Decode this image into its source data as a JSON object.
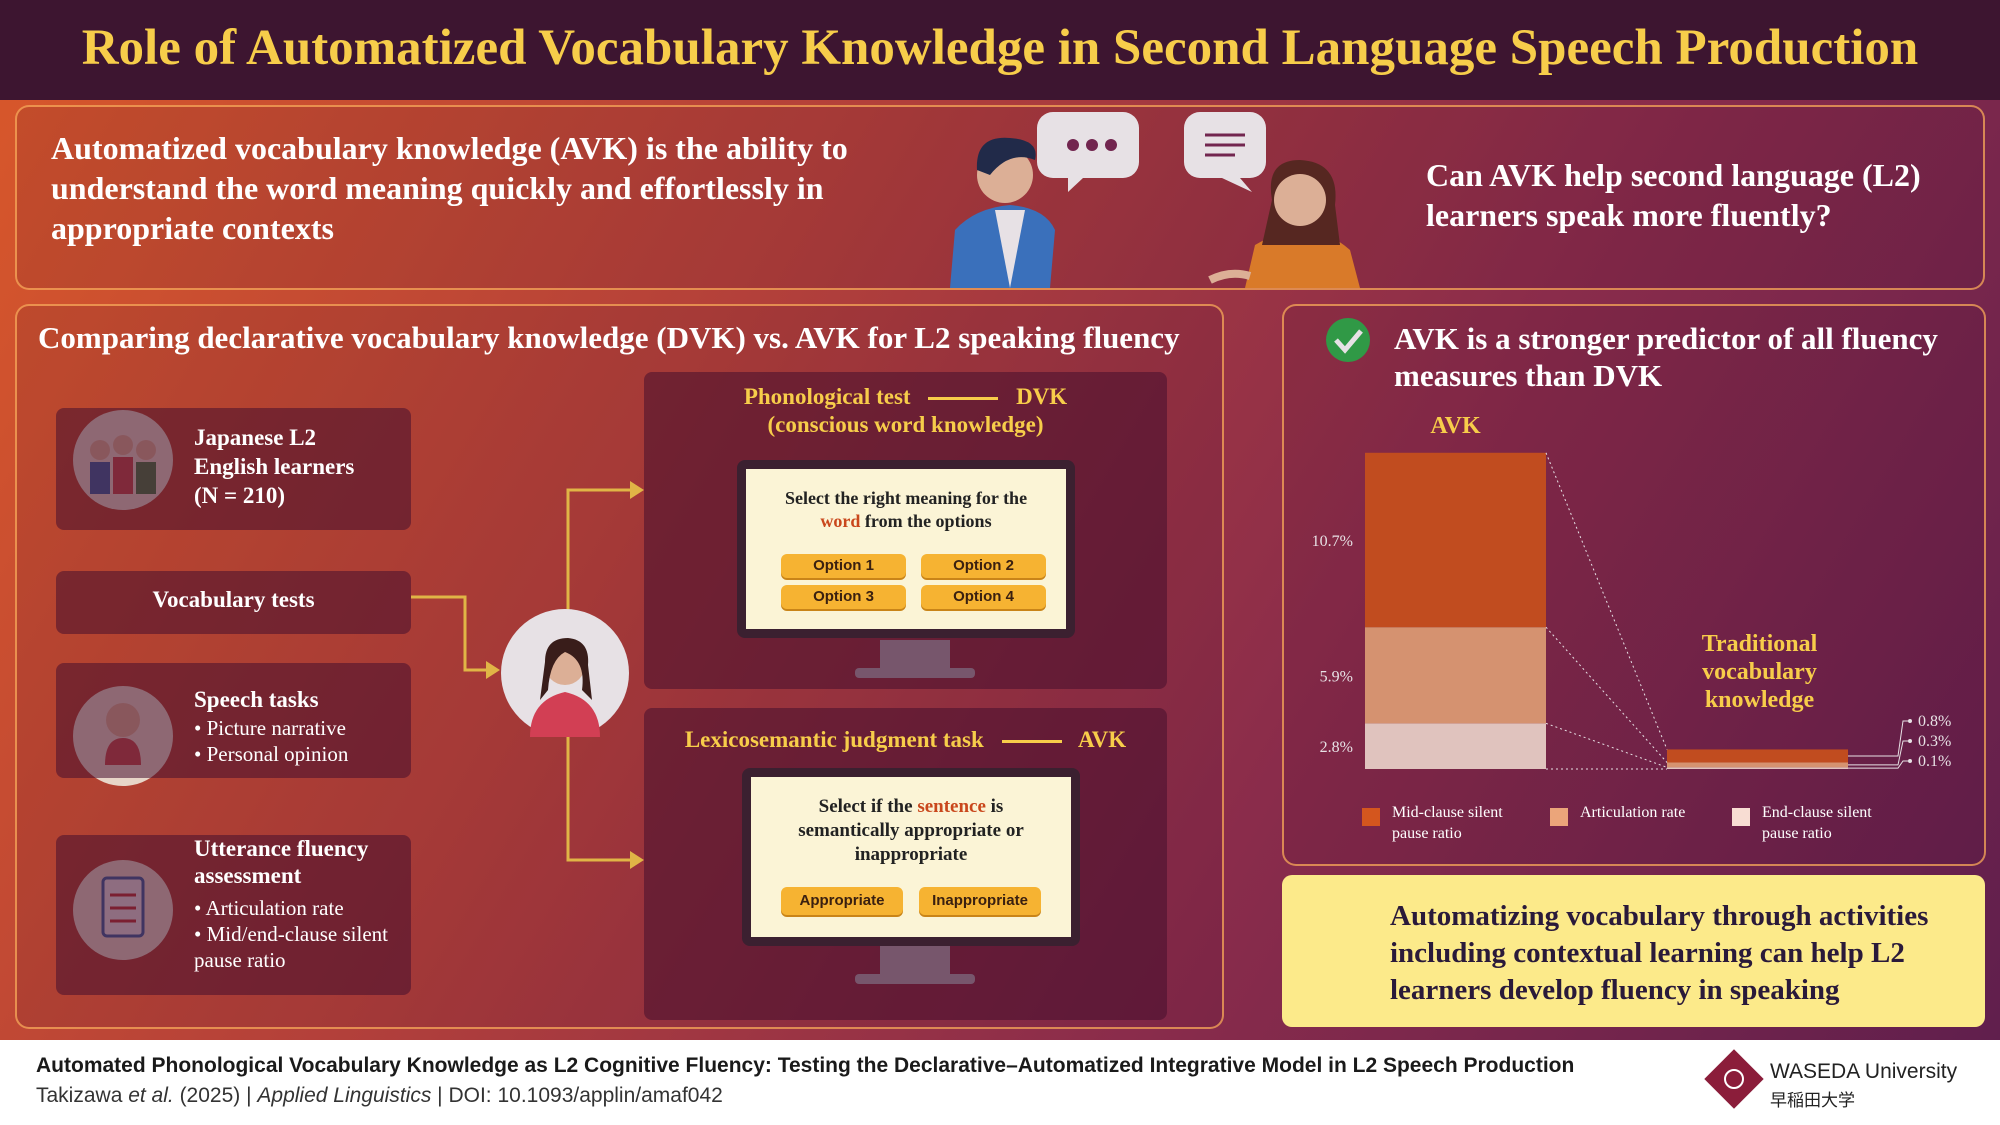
{
  "header": {
    "title": "Role of Automatized Vocabulary Knowledge in Second Language Speech Production"
  },
  "intro": {
    "definition": "Automatized vocabulary knowledge (AVK) is the ability to understand the word meaning quickly and effortlessly in appropriate contexts",
    "question": "Can AVK help second language (L2) learners speak more fluently?"
  },
  "method": {
    "heading": "Comparing declarative vocabulary knowledge (DVK) vs. AVK for L2 speaking fluency",
    "participants": "Japanese L2 English learners (N = 210)",
    "vocab_tests": "Vocabulary tests",
    "speech": {
      "title": "Speech tasks",
      "items": [
        "Picture narrative",
        "Personal opinion"
      ]
    },
    "assessment": {
      "title": "Utterance fluency assessment",
      "items": [
        "Articulation rate",
        "Mid/end-clause silent pause ratio"
      ]
    },
    "test1": {
      "name": "Phonological test",
      "target": "DVK",
      "note": "(conscious word knowledge)",
      "prompt": [
        "Select the right meaning for the",
        "word",
        "from the options"
      ],
      "options": [
        "Option 1",
        "Option 2",
        "Option 3",
        "Option 4"
      ]
    },
    "test2": {
      "name": "Lexicosemantic judgment task",
      "target": "AVK",
      "prompt": [
        "Select if the",
        "sentence",
        "is semantically appropriate or inappropriate"
      ],
      "options": [
        "Appropriate",
        "Inappropriate"
      ]
    }
  },
  "result": {
    "heading": "AVK is a stronger predictor of all fluency measures than DVK"
  },
  "chart_data": {
    "type": "bar",
    "stacked": true,
    "categories": [
      "AVK",
      "Traditional vocabulary knowledge"
    ],
    "series": [
      {
        "name": "Mid-clause silent pause ratio",
        "color": "#d4561e",
        "values": [
          10.7,
          0.8
        ],
        "value_labels": [
          "10.7%",
          "0.8%"
        ]
      },
      {
        "name": "Articulation rate",
        "color": "#eba57a",
        "values": [
          5.9,
          0.3
        ],
        "value_labels": [
          "5.9%",
          "0.3%"
        ]
      },
      {
        "name": "End-clause silent pause ratio",
        "color": "#f8ddd3",
        "values": [
          2.8,
          0.1
        ],
        "value_labels": [
          "2.8%",
          "0.1%"
        ]
      }
    ]
  },
  "conclusion": "Automatizing vocabulary through activities including contextual learning can help L2 learners develop fluency in speaking",
  "footer": {
    "paper_title": "Automated Phonological Vocabulary Knowledge as L2 Cognitive Fluency: Testing the Declarative–Automatized Integrative Model in L2 Speech Production",
    "citation": [
      "Takizawa ",
      "et al.",
      " (2025) | ",
      "Applied Linguistics",
      " | DOI: 10.1093/applin/amaf042"
    ],
    "institution": "WASEDA University",
    "institution_jp": "早稲田大学"
  }
}
